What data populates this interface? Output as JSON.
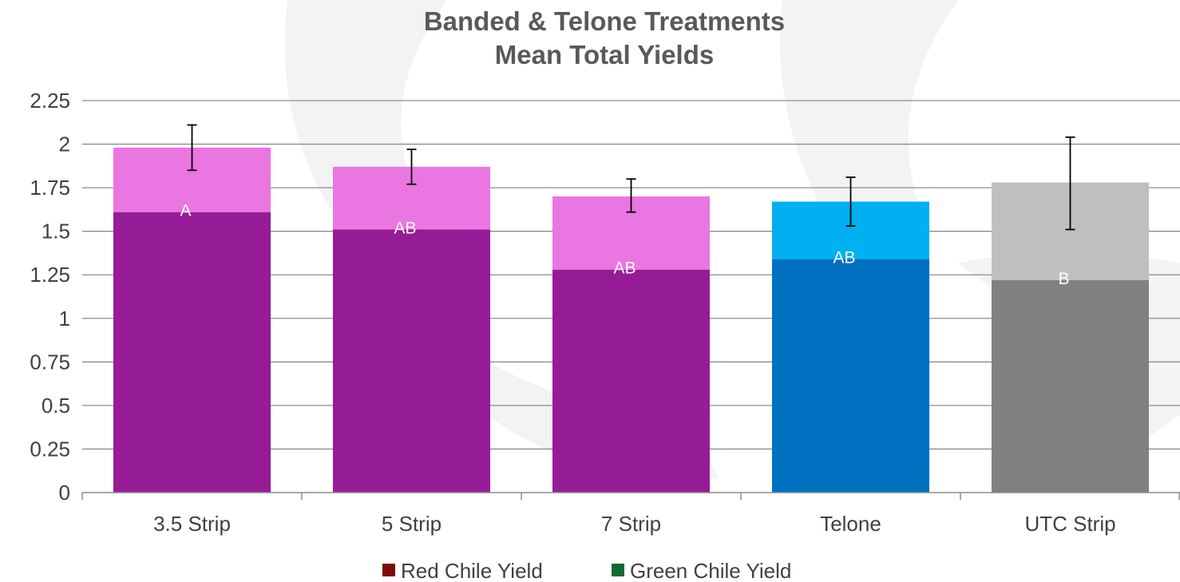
{
  "chart_data": {
    "type": "bar",
    "stacked": true,
    "title_line1": "Banded & Telone Treatments",
    "title_line2": "Mean Total Yields",
    "xlabel": "",
    "ylabel": "",
    "ylim": [
      0,
      2.25
    ],
    "yticks": [
      "0",
      "0.25",
      "0.5",
      "0.75",
      "1",
      "1.25",
      "1.5",
      "1.75",
      "2",
      "2.25"
    ],
    "ytick_values": [
      0,
      0.25,
      0.5,
      0.75,
      1,
      1.25,
      1.5,
      1.75,
      2,
      2.25
    ],
    "grid": true,
    "legend_position": "bottom",
    "categories": [
      "3.5 Strip",
      "5 Strip",
      "7 Strip",
      "Telone",
      "UTC Strip"
    ],
    "series": [
      {
        "name": "Red Chile Yield",
        "legend_color": "#7b0c0c",
        "values": [
          1.61,
          1.51,
          1.28,
          1.34,
          1.22
        ]
      },
      {
        "name": "Green Chile Yield",
        "legend_color": "#0f6b36",
        "values": [
          0.37,
          0.36,
          0.42,
          0.33,
          0.56
        ]
      }
    ],
    "totals": [
      1.98,
      1.87,
      1.7,
      1.67,
      1.78
    ],
    "error_bars": [
      {
        "low": 1.85,
        "high": 2.11
      },
      {
        "low": 1.77,
        "high": 1.97
      },
      {
        "low": 1.61,
        "high": 1.8
      },
      {
        "low": 1.53,
        "high": 1.81
      },
      {
        "low": 1.51,
        "high": 2.04
      }
    ],
    "significance_labels": [
      "A",
      "AB",
      "AB",
      "AB",
      "B"
    ],
    "significance_label_values": [
      1.61,
      1.51,
      1.28,
      1.34,
      1.22
    ],
    "bar_colors": [
      {
        "lower": "#951c96",
        "upper": "#ea76e2"
      },
      {
        "lower": "#951c96",
        "upper": "#ea76e2"
      },
      {
        "lower": "#951c96",
        "upper": "#ea76e2"
      },
      {
        "lower": "#0070c0",
        "upper": "#00b0f0"
      },
      {
        "lower": "#808080",
        "upper": "#bfbfbf"
      }
    ],
    "gridline_color": "#8c8c8c",
    "axis_color": "#8c8c8c"
  }
}
